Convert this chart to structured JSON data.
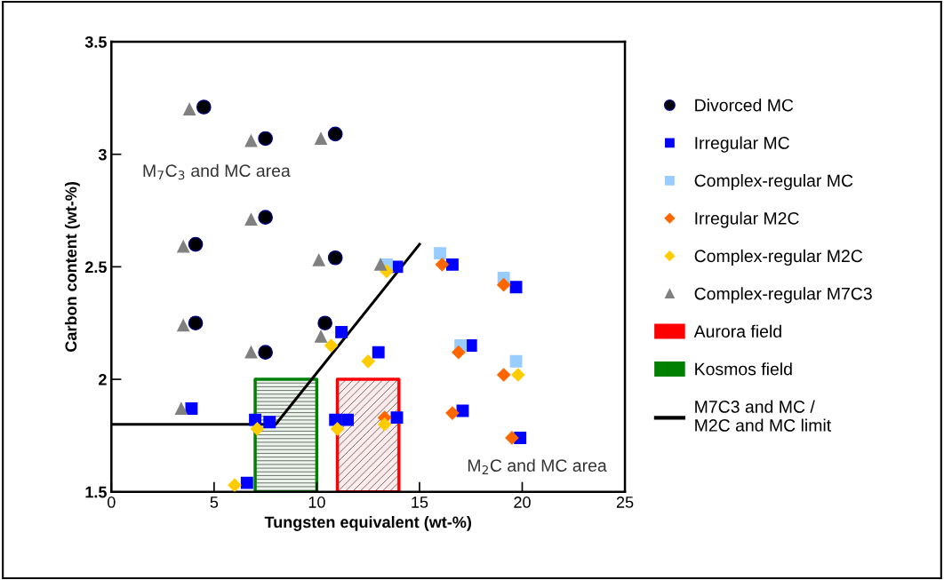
{
  "chart_data": {
    "type": "scatter",
    "xlabel": "Tungsten equivalent (wt-%)",
    "ylabel": "Carbon content (wt-%)",
    "xlim": [
      0,
      25
    ],
    "xticks": [
      0,
      5,
      10,
      15,
      20,
      25
    ],
    "ylim": [
      1.5,
      3.5
    ],
    "yticks": [
      1.5,
      2,
      2.5,
      3,
      3.5
    ],
    "grid": false,
    "legend": "right",
    "annotations": [
      "M$_{7}$C$_{3}$ and MC area",
      "M$_{2}$C and MC area"
    ],
    "series": [
      {
        "name": "Divorced MC",
        "color": "#000000",
        "marker": "circle",
        "x": [
          4.5,
          7.5,
          10.9,
          7.5,
          4.1,
          10.9,
          4.1,
          10.4,
          7.5
        ],
        "values": [
          3.21,
          3.07,
          3.09,
          2.72,
          2.6,
          2.54,
          2.25,
          2.25,
          2.12
        ]
      },
      {
        "name": "Irregular MC",
        "color": "#0000ff",
        "marker": "square",
        "x": [
          3.9,
          11.2,
          13.0,
          13.9,
          16.6,
          19.7,
          17.5,
          17.1,
          19.9,
          6.6,
          7.0,
          7.7,
          10.9,
          11.5,
          13.9
        ],
        "values": [
          1.87,
          2.21,
          2.12,
          2.5,
          2.51,
          2.41,
          2.15,
          1.86,
          1.74,
          1.54,
          1.82,
          1.81,
          1.82,
          1.82,
          1.83
        ]
      },
      {
        "name": "Complex-regular MC",
        "color": "#99ccff",
        "marker": "square",
        "x": [
          13.4,
          16.0,
          19.1,
          17.0,
          19.7
        ],
        "values": [
          2.51,
          2.56,
          2.45,
          2.15,
          2.08
        ]
      },
      {
        "name": "Irregular M2C",
        "color": "#ff6600",
        "marker": "diamond",
        "x": [
          16.1,
          19.1,
          16.9,
          19.1,
          16.6,
          19.5,
          13.3
        ],
        "values": [
          2.51,
          2.42,
          2.12,
          2.02,
          1.85,
          1.74,
          1.83
        ]
      },
      {
        "name": "Complex-regular M2C",
        "color": "#ffcc00",
        "marker": "diamond",
        "x": [
          13.4,
          10.7,
          12.5,
          19.8,
          7.1,
          11.0,
          13.3,
          6.0
        ],
        "values": [
          2.48,
          2.15,
          2.08,
          2.02,
          1.78,
          1.78,
          1.8,
          1.53
        ]
      },
      {
        "name": "Complex-regular M7C3",
        "color": "#808080",
        "marker": "triangle",
        "x": [
          3.8,
          6.8,
          10.2,
          6.8,
          3.5,
          10.1,
          3.5,
          10.2,
          6.8,
          3.4,
          13.1
        ],
        "values": [
          3.2,
          3.06,
          3.07,
          2.71,
          2.59,
          2.53,
          2.24,
          2.19,
          2.12,
          1.87,
          2.51
        ]
      },
      {
        "name": "Aurora field",
        "type": "area",
        "color": "#ff0000",
        "x": [
          11,
          14
        ],
        "values": [
          2,
          2
        ]
      },
      {
        "name": "Kosmos field",
        "type": "area",
        "color": "#008000",
        "x": [
          7,
          10
        ],
        "values": [
          2,
          2
        ]
      },
      {
        "name": "M7C3 and MC /\nM2C and MC limit",
        "type": "line",
        "color": "#000000",
        "line_style": "solid",
        "x": [
          0,
          8,
          15
        ],
        "values": [
          1.8,
          1.8,
          2.6
        ]
      }
    ]
  }
}
